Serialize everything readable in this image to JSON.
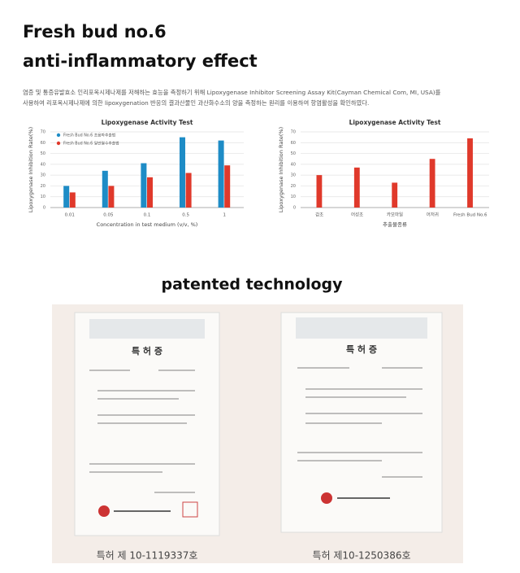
{
  "header": {
    "title_line1": "Fresh bud no.6",
    "title_line2": "anti-inflammatory effect"
  },
  "description": [
    "염증 및 통증유발효소 인리포옥시제나제를 저해하는 효능을 측정하기 위해 Lipoxygenase Inhibitor Screening Assay Kit(Cayman Chemical Com, MI, USA)를",
    "사용하여 리포옥시제나제에 의한 lipoxygenation 반응의 결과산물인 과산화수소의 양을 측정하는 원리를 이용하여 항염활성을 확인하였다."
  ],
  "chart_data": [
    {
      "type": "bar",
      "title": "Lipoxygenase Activity Test",
      "y_label": "Lipoxygenase Inhibition Rate(%)",
      "x_label": "Concentration in test medium (v/v, %)",
      "categories": [
        "0.01",
        "0.05",
        "0.1",
        "0.5",
        "1"
      ],
      "series": [
        {
          "name": "Fresh Bud No.6 초음파추출법",
          "color": "#1e8cc6",
          "values": [
            20,
            34,
            41,
            65,
            62
          ]
        },
        {
          "name": "Fresh Bud No.6 일반열수추출법",
          "color": "#e0392b",
          "values": [
            14,
            20,
            28,
            32,
            39
          ]
        }
      ],
      "ylim": [
        0,
        70
      ],
      "yticks": [
        0,
        10,
        20,
        30,
        40,
        50,
        60,
        70
      ],
      "grid": true
    },
    {
      "type": "bar",
      "title": "Lipoxygenase Activity Test",
      "y_label": "Lipoxygenase Inhibition Rate(%)",
      "x_label": "추출물종류",
      "categories": [
        "감초",
        "어성초",
        "카모마일",
        "어저귀",
        "Fresh Bud No.6"
      ],
      "values": [
        30,
        37,
        23,
        45,
        64
      ],
      "color": "#e0392b",
      "ylim": [
        0,
        70
      ],
      "yticks": [
        0,
        10,
        20,
        30,
        40,
        50,
        60,
        70
      ],
      "grid": true
    }
  ],
  "patents": {
    "title": "patented technology",
    "certificates": [
      {
        "heading": "특 허 증",
        "caption": "특허 제 10-1119337호"
      },
      {
        "heading": "특 허 증",
        "caption": "특허 제10-1250386호"
      }
    ]
  }
}
